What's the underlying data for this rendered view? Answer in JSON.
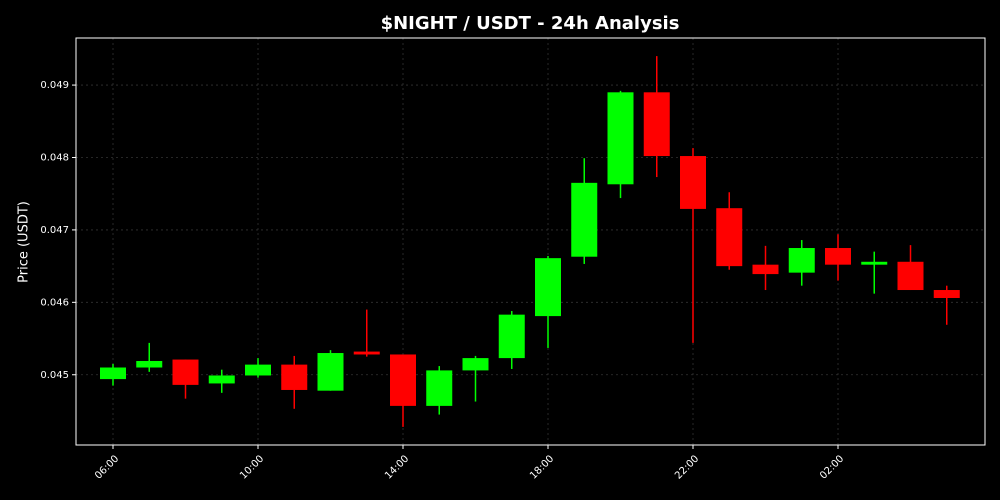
{
  "chart_data": {
    "type": "candlestick",
    "title": "$NIGHT / USDT - 24h Analysis",
    "y_label": "Price (USDT)",
    "categories": [
      "06:00",
      null,
      null,
      null,
      "10:00",
      null,
      null,
      null,
      "14:00",
      null,
      null,
      null,
      "18:00",
      null,
      null,
      null,
      "22:00",
      null,
      null,
      null,
      "02:00",
      null,
      null,
      null
    ],
    "open": [
      0.04494,
      0.0451,
      0.04521,
      0.04488,
      0.04499,
      0.04514,
      0.04478,
      0.04532,
      0.04528,
      0.04457,
      0.04506,
      0.04523,
      0.04581,
      0.04663,
      0.04763,
      0.0489,
      0.04802,
      0.0473,
      0.04652,
      0.04641,
      0.04675,
      0.04652,
      0.04656,
      0.04617
    ],
    "high": [
      0.04515,
      0.04544,
      0.04521,
      0.04507,
      0.04523,
      0.04526,
      0.04534,
      0.0459,
      0.04528,
      0.04512,
      0.04526,
      0.04588,
      0.04664,
      0.04799,
      0.04892,
      0.0494,
      0.04813,
      0.04752,
      0.04678,
      0.04686,
      0.04694,
      0.0467,
      0.04679,
      0.04623
    ],
    "low": [
      0.04485,
      0.04504,
      0.04467,
      0.04475,
      0.04496,
      0.04453,
      0.04478,
      0.04525,
      0.04428,
      0.04445,
      0.04463,
      0.04508,
      0.04537,
      0.04653,
      0.04744,
      0.04773,
      0.04544,
      0.04645,
      0.04617,
      0.04623,
      0.0463,
      0.04612,
      0.04617,
      0.04569
    ],
    "close": [
      0.0451,
      0.04519,
      0.04486,
      0.04499,
      0.04514,
      0.04479,
      0.0453,
      0.04528,
      0.04457,
      0.04506,
      0.04523,
      0.04583,
      0.04661,
      0.04765,
      0.0489,
      0.04802,
      0.04729,
      0.0465,
      0.04639,
      0.04675,
      0.04652,
      0.04656,
      0.04617,
      0.04606
    ],
    "up_color": "#00ff00",
    "down_color": "#ff0000",
    "ylim": [
      0.04403,
      0.04965
    ],
    "yticks": [
      0.045,
      0.046,
      0.047,
      0.048,
      0.049
    ],
    "grid": true
  }
}
